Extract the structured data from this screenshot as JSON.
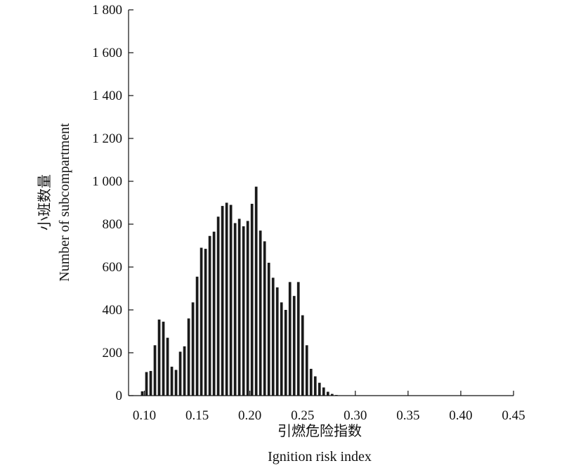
{
  "chart_data": {
    "type": "bar",
    "xlabel_zh": "引燃危险指数",
    "xlabel": "Ignition risk index",
    "ylabel_zh": "小班数量",
    "ylabel": "Number of subcompartment",
    "xlim": [
      0.085,
      0.45
    ],
    "ylim": [
      0,
      1800
    ],
    "x_ticks": [
      0.1,
      0.15,
      0.2,
      0.25,
      0.3,
      0.35,
      0.4,
      0.45
    ],
    "x_tick_labels": [
      "0.10",
      "0.15",
      "0.20",
      "0.25",
      "0.30",
      "0.35",
      "0.40",
      "0.45"
    ],
    "y_ticks": [
      0,
      200,
      400,
      600,
      800,
      1000,
      1200,
      1400,
      1600,
      1800
    ],
    "y_tick_labels": [
      "0",
      "200",
      "400",
      "600",
      "800",
      "1 000",
      "1 200",
      "1 400",
      "1 600",
      "1 800"
    ],
    "bar_color": "#1a1a1a",
    "grid": false,
    "x": [
      0.098,
      0.102,
      0.106,
      0.11,
      0.114,
      0.118,
      0.122,
      0.126,
      0.13,
      0.134,
      0.138,
      0.142,
      0.146,
      0.15,
      0.154,
      0.158,
      0.162,
      0.166,
      0.17,
      0.174,
      0.178,
      0.182,
      0.186,
      0.19,
      0.194,
      0.198,
      0.202,
      0.206,
      0.21,
      0.214,
      0.218,
      0.222,
      0.226,
      0.23,
      0.234,
      0.238,
      0.242,
      0.246,
      0.25,
      0.254,
      0.258,
      0.262,
      0.266,
      0.27,
      0.274,
      0.278,
      0.282,
      0.286,
      0.29,
      0.294,
      0.298,
      0.302,
      0.306,
      0.31,
      0.314,
      0.318,
      0.322
    ],
    "values": [
      20,
      110,
      115,
      235,
      355,
      345,
      270,
      135,
      120,
      205,
      230,
      360,
      435,
      555,
      690,
      685,
      745,
      765,
      835,
      885,
      900,
      890,
      805,
      825,
      790,
      815,
      895,
      975,
      770,
      720,
      620,
      550,
      505,
      435,
      400,
      530,
      465,
      530,
      375,
      235,
      125,
      90,
      60,
      38,
      18,
      8,
      3,
      1,
      0,
      0,
      0,
      0,
      0,
      0,
      0,
      0,
      0
    ]
  }
}
